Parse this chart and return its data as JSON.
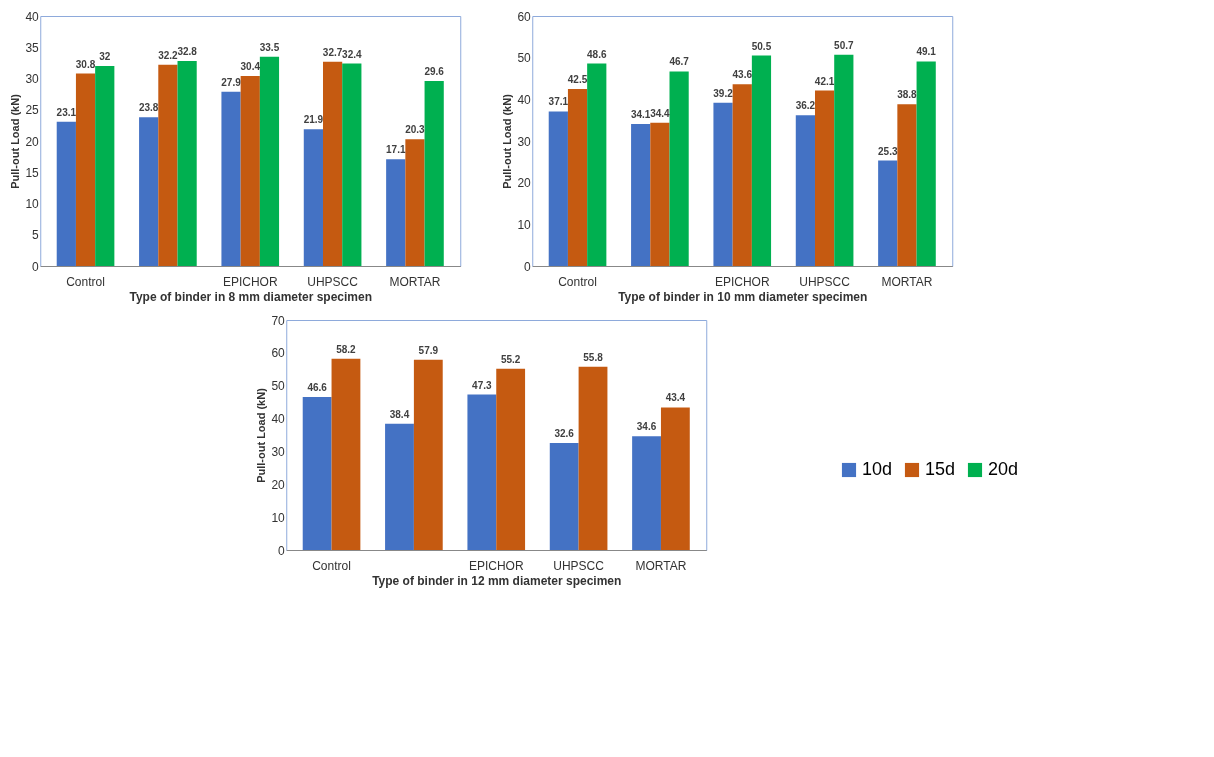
{
  "chart_data": [
    {
      "type": "bar",
      "xlabel": "Type of binder in 8 mm diameter specimen",
      "ylabel": "Pull-out Load (kN)",
      "categories": [
        "Control",
        null,
        "EPICHOR",
        "UHPSCC",
        "MORTAR"
      ],
      "ylim": [
        0,
        40
      ],
      "yticks": [
        0,
        5,
        10,
        15,
        20,
        25,
        30,
        35,
        40
      ],
      "data_labels": true,
      "legend": "right",
      "series": [
        {
          "name": "10d",
          "color": "#4472c4",
          "values": [
            23.1,
            23.8,
            27.9,
            21.9,
            17.1
          ]
        },
        {
          "name": "15d",
          "color": "#c55a11",
          "values": [
            30.8,
            32.2,
            30.4,
            32.7,
            20.3
          ]
        },
        {
          "name": "20d",
          "color": "#00b050",
          "values": [
            32,
            32.8,
            33.5,
            32.4,
            29.6
          ]
        }
      ]
    },
    {
      "type": "bar",
      "xlabel": "Type of binder in 10 mm diameter specimen",
      "ylabel": "Pull-out Load (kN)",
      "categories": [
        "Control",
        null,
        "EPICHOR",
        "UHPSCC",
        "MORTAR"
      ],
      "ylim": [
        0,
        60
      ],
      "yticks": [
        0,
        10,
        20,
        30,
        40,
        50,
        60
      ],
      "data_labels": true,
      "legend": "right",
      "series": [
        {
          "name": "10d",
          "color": "#4472c4",
          "values": [
            37.1,
            34.1,
            39.2,
            36.2,
            25.3
          ]
        },
        {
          "name": "15d",
          "color": "#c55a11",
          "values": [
            42.5,
            34.4,
            43.6,
            42.1,
            38.8
          ]
        },
        {
          "name": "20d",
          "color": "#00b050",
          "values": [
            48.6,
            46.7,
            50.5,
            50.7,
            49.1
          ]
        }
      ]
    },
    {
      "type": "bar",
      "xlabel": "Type of binder in 12 mm diameter specimen",
      "ylabel": "Pull-out Load (kN)",
      "categories": [
        "Control",
        null,
        "EPICHOR",
        "UHPSCC",
        "MORTAR"
      ],
      "ylim": [
        0,
        70
      ],
      "yticks": [
        0,
        10,
        20,
        30,
        40,
        50,
        60,
        70
      ],
      "data_labels": true,
      "legend": "right",
      "series": [
        {
          "name": "10d",
          "color": "#4472c4",
          "values": [
            46.6,
            38.4,
            47.3,
            32.6,
            34.6
          ]
        },
        {
          "name": "15d",
          "color": "#c55a11",
          "values": [
            58.2,
            57.9,
            55.2,
            55.8,
            43.4
          ]
        }
      ]
    }
  ]
}
